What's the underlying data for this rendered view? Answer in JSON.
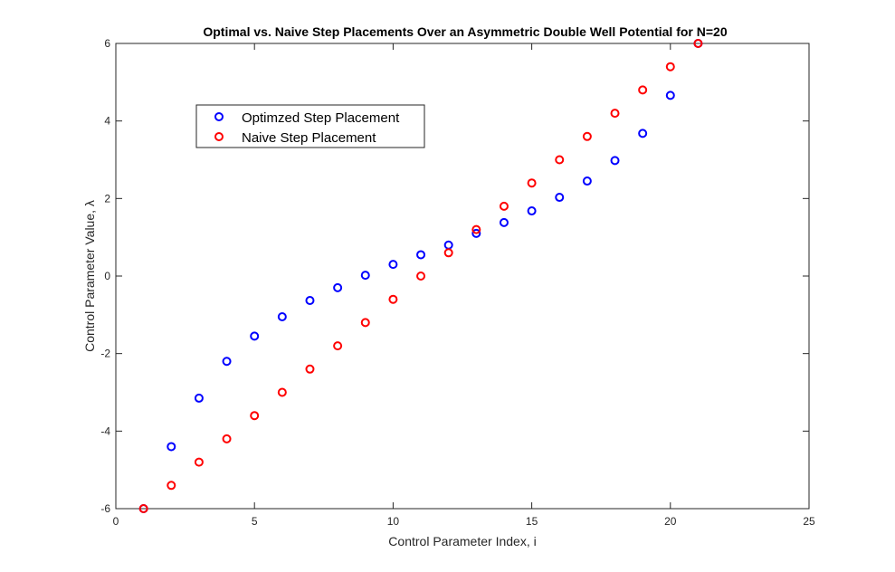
{
  "chart_data": {
    "type": "scatter",
    "title": "Optimal vs. Naive Step Placements Over an Asymmetric Double Well Potential for N=20",
    "xlabel": "Control Parameter Index, i",
    "ylabel": "Control Parameter Value, λ",
    "xlim": [
      0,
      25
    ],
    "ylim": [
      -6,
      6
    ],
    "xticks": [
      "0",
      "5",
      "10",
      "15",
      "20",
      "25"
    ],
    "yticks": [
      "-6",
      "-4",
      "-2",
      "0",
      "2",
      "4",
      "6"
    ],
    "xtick_values": [
      0,
      5,
      10,
      15,
      20,
      25
    ],
    "ytick_values": [
      -6,
      -4,
      -2,
      0,
      2,
      4,
      6
    ],
    "grid": false,
    "legend_position": "top-left",
    "series": [
      {
        "name": "Optimzed Step Placement",
        "color": "#0000ff",
        "marker": "circle-open",
        "x": [
          1,
          2,
          3,
          4,
          5,
          6,
          7,
          8,
          9,
          10,
          11,
          12,
          13,
          14,
          15,
          16,
          17,
          18,
          19,
          20,
          21
        ],
        "y": [
          -6.0,
          -4.4,
          -3.15,
          -2.2,
          -1.55,
          -1.05,
          -0.63,
          -0.3,
          0.02,
          0.3,
          0.55,
          0.8,
          1.1,
          1.38,
          1.68,
          2.03,
          2.45,
          2.98,
          3.68,
          4.66,
          6.0
        ]
      },
      {
        "name": "Naive Step Placement",
        "color": "#ff0000",
        "marker": "circle-open",
        "x": [
          1,
          2,
          3,
          4,
          5,
          6,
          7,
          8,
          9,
          10,
          11,
          12,
          13,
          14,
          15,
          16,
          17,
          18,
          19,
          20,
          21
        ],
        "y": [
          -6.0,
          -5.4,
          -4.8,
          -4.2,
          -3.6,
          -3.0,
          -2.4,
          -1.8,
          -1.2,
          -0.6,
          0.0,
          0.6,
          1.2,
          1.8,
          2.4,
          3.0,
          3.6,
          4.2,
          4.8,
          5.4,
          6.0
        ]
      }
    ]
  }
}
